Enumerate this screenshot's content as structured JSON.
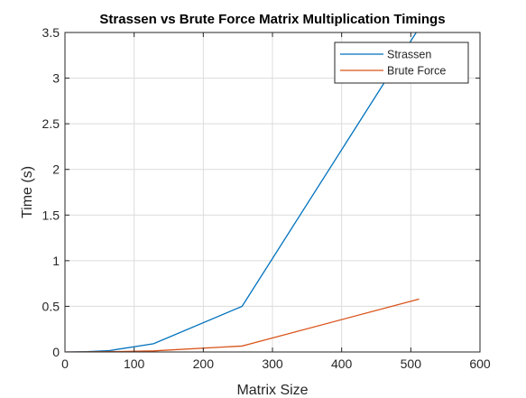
{
  "chart_data": {
    "type": "line",
    "title": "Strassen vs Brute Force Matrix Multiplication Timings",
    "xlabel": "Matrix Size",
    "ylabel": "Time (s)",
    "xlim": [
      0,
      600
    ],
    "ylim": [
      0,
      3.5
    ],
    "xticks": [
      "0",
      "100",
      "200",
      "300",
      "400",
      "500",
      "600"
    ],
    "yticks": [
      "0",
      "0.5",
      "1",
      "1.5",
      "2",
      "2.5",
      "3",
      "3.5"
    ],
    "grid": true,
    "legend_position": "top-right",
    "x": [
      2,
      4,
      8,
      16,
      32,
      64,
      128,
      256,
      512
    ],
    "series": [
      {
        "name": "Strassen",
        "color": "#0072BD",
        "values": [
          0.0,
          0.0,
          0.0,
          0.001,
          0.003,
          0.015,
          0.09,
          0.5,
          3.55
        ]
      },
      {
        "name": "Brute Force",
        "color": "#D95319",
        "values": [
          0.0,
          0.0,
          0.0,
          0.0,
          0.0005,
          0.003,
          0.012,
          0.065,
          0.58
        ]
      }
    ]
  }
}
